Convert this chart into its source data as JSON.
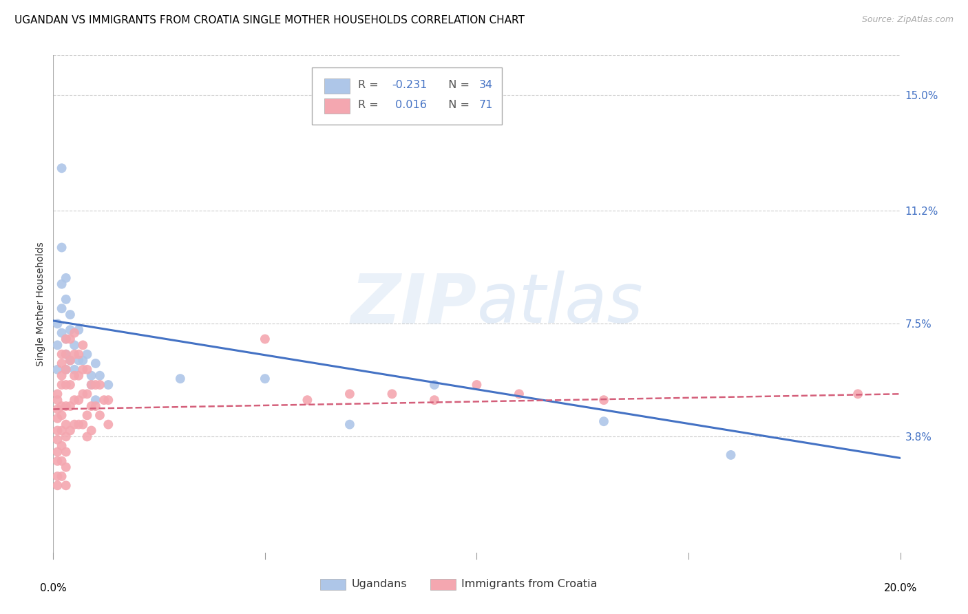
{
  "title": "UGANDAN VS IMMIGRANTS FROM CROATIA SINGLE MOTHER HOUSEHOLDS CORRELATION CHART",
  "source": "Source: ZipAtlas.com",
  "ylabel": "Single Mother Households",
  "ytick_labels": [
    "3.8%",
    "7.5%",
    "11.2%",
    "15.0%"
  ],
  "ytick_vals": [
    0.038,
    0.075,
    0.112,
    0.15
  ],
  "xlim": [
    0.0,
    0.2
  ],
  "ylim": [
    0.0,
    0.163
  ],
  "watermark": "ZIPatlas",
  "blue_dot_color": "#aec6e8",
  "pink_dot_color": "#f4a7b0",
  "blue_line_color": "#4472c4",
  "pink_line_color": "#d45f7a",
  "grid_color": "#cccccc",
  "title_fontsize": 11,
  "tick_fontsize": 11,
  "right_tick_color": "#4472c4",
  "dot_size": 100,
  "ugandan_x": [
    0.001,
    0.001,
    0.001,
    0.002,
    0.002,
    0.002,
    0.002,
    0.002,
    0.003,
    0.003,
    0.003,
    0.003,
    0.003,
    0.004,
    0.004,
    0.004,
    0.005,
    0.005,
    0.006,
    0.006,
    0.007,
    0.008,
    0.009,
    0.009,
    0.01,
    0.01,
    0.011,
    0.013,
    0.03,
    0.05,
    0.07,
    0.09,
    0.13,
    0.16
  ],
  "ugandan_y": [
    0.075,
    0.068,
    0.06,
    0.072,
    0.08,
    0.088,
    0.1,
    0.126,
    0.065,
    0.07,
    0.083,
    0.09,
    0.06,
    0.073,
    0.078,
    0.063,
    0.068,
    0.06,
    0.073,
    0.063,
    0.063,
    0.065,
    0.058,
    0.055,
    0.062,
    0.05,
    0.058,
    0.055,
    0.057,
    0.057,
    0.042,
    0.055,
    0.043,
    0.032
  ],
  "croatia_x": [
    0.001,
    0.001,
    0.001,
    0.001,
    0.001,
    0.001,
    0.001,
    0.001,
    0.001,
    0.001,
    0.002,
    0.002,
    0.002,
    0.002,
    0.002,
    0.002,
    0.002,
    0.002,
    0.002,
    0.002,
    0.003,
    0.003,
    0.003,
    0.003,
    0.003,
    0.003,
    0.003,
    0.003,
    0.003,
    0.003,
    0.004,
    0.004,
    0.004,
    0.004,
    0.004,
    0.005,
    0.005,
    0.005,
    0.005,
    0.005,
    0.006,
    0.006,
    0.006,
    0.006,
    0.007,
    0.007,
    0.007,
    0.007,
    0.008,
    0.008,
    0.008,
    0.008,
    0.009,
    0.009,
    0.009,
    0.01,
    0.01,
    0.011,
    0.011,
    0.012,
    0.013,
    0.013,
    0.05,
    0.06,
    0.07,
    0.08,
    0.09,
    0.1,
    0.11,
    0.13,
    0.19
  ],
  "croatia_y": [
    0.052,
    0.05,
    0.047,
    0.044,
    0.04,
    0.037,
    0.033,
    0.03,
    0.025,
    0.022,
    0.065,
    0.062,
    0.058,
    0.055,
    0.048,
    0.045,
    0.04,
    0.035,
    0.03,
    0.025,
    0.07,
    0.065,
    0.06,
    0.055,
    0.048,
    0.042,
    0.038,
    0.033,
    0.028,
    0.022,
    0.07,
    0.063,
    0.055,
    0.048,
    0.04,
    0.072,
    0.065,
    0.058,
    0.05,
    0.042,
    0.065,
    0.058,
    0.05,
    0.042,
    0.068,
    0.06,
    0.052,
    0.042,
    0.06,
    0.052,
    0.045,
    0.038,
    0.055,
    0.048,
    0.04,
    0.055,
    0.048,
    0.055,
    0.045,
    0.05,
    0.05,
    0.042,
    0.07,
    0.05,
    0.052,
    0.052,
    0.05,
    0.055,
    0.052,
    0.05,
    0.052
  ],
  "blue_line_x": [
    0.0,
    0.2
  ],
  "blue_line_y": [
    0.076,
    0.031
  ],
  "pink_line_x": [
    0.0,
    0.2
  ],
  "pink_line_y": [
    0.047,
    0.052
  ]
}
